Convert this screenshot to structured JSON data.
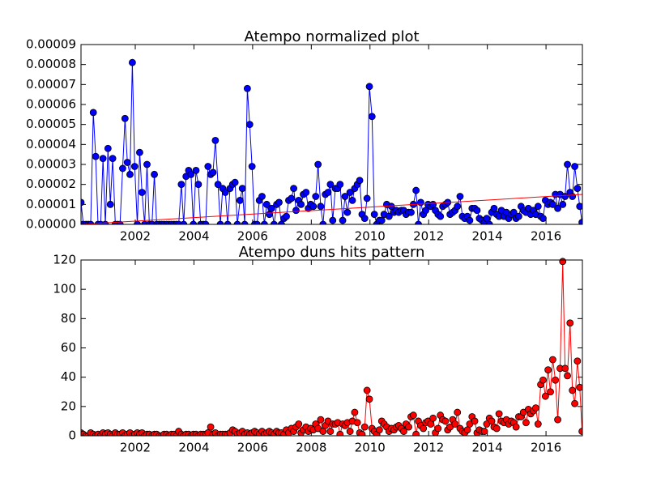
{
  "chart_data": [
    {
      "type": "line",
      "title": "Atempo normalized plot",
      "x": [
        2000.15,
        2000.23,
        2000.32,
        2000.4,
        2000.48,
        2000.57,
        2000.65,
        2000.73,
        2000.82,
        2000.9,
        2000.98,
        2001.07,
        2001.15,
        2001.23,
        2001.32,
        2001.4,
        2001.48,
        2001.57,
        2001.65,
        2001.73,
        2001.82,
        2001.9,
        2001.98,
        2002.07,
        2002.15,
        2002.23,
        2002.32,
        2002.4,
        2002.48,
        2002.57,
        2002.65,
        2002.73,
        2002.82,
        2002.9,
        2002.98,
        2003.07,
        2003.15,
        2003.23,
        2003.32,
        2003.4,
        2003.48,
        2003.57,
        2003.65,
        2003.73,
        2003.82,
        2003.9,
        2003.98,
        2004.07,
        2004.15,
        2004.23,
        2004.32,
        2004.4,
        2004.48,
        2004.57,
        2004.65,
        2004.73,
        2004.82,
        2004.9,
        2004.98,
        2005.07,
        2005.15,
        2005.23,
        2005.32,
        2005.4,
        2005.48,
        2005.57,
        2005.65,
        2005.73,
        2005.82,
        2005.9,
        2005.98,
        2006.07,
        2006.15,
        2006.23,
        2006.32,
        2006.4,
        2006.48,
        2006.57,
        2006.65,
        2006.73,
        2006.82,
        2006.9,
        2006.98,
        2007.07,
        2007.15,
        2007.23,
        2007.32,
        2007.4,
        2007.48,
        2007.57,
        2007.65,
        2007.73,
        2007.82,
        2007.9,
        2007.98,
        2008.07,
        2008.15,
        2008.23,
        2008.32,
        2008.4,
        2008.48,
        2008.57,
        2008.65,
        2008.73,
        2008.82,
        2008.9,
        2008.98,
        2009.07,
        2009.15,
        2009.23,
        2009.32,
        2009.4,
        2009.48,
        2009.57,
        2009.65,
        2009.73,
        2009.82,
        2009.9,
        2009.98,
        2010.07,
        2010.15,
        2010.23,
        2010.32,
        2010.4,
        2010.48,
        2010.57,
        2010.65,
        2010.73,
        2010.82,
        2010.9,
        2010.98,
        2011.07,
        2011.15,
        2011.23,
        2011.32,
        2011.4,
        2011.48,
        2011.57,
        2011.65,
        2011.73,
        2011.82,
        2011.9,
        2011.98,
        2012.07,
        2012.15,
        2012.23,
        2012.32,
        2012.4,
        2012.48,
        2012.57,
        2012.65,
        2012.73,
        2012.82,
        2012.9,
        2012.98,
        2013.07,
        2013.15,
        2013.23,
        2013.32,
        2013.4,
        2013.48,
        2013.57,
        2013.65,
        2013.73,
        2013.82,
        2013.9,
        2013.98,
        2014.07,
        2014.15,
        2014.23,
        2014.32,
        2014.4,
        2014.48,
        2014.57,
        2014.65,
        2014.73,
        2014.82,
        2014.9,
        2014.98,
        2015.07,
        2015.15,
        2015.23,
        2015.32,
        2015.4,
        2015.48,
        2015.57,
        2015.65,
        2015.73,
        2015.82,
        2015.9,
        2015.98,
        2016.07,
        2016.15,
        2016.23,
        2016.32,
        2016.4,
        2016.48,
        2016.57,
        2016.65,
        2016.73,
        2016.82,
        2016.9,
        2016.98,
        2017.07,
        2017.15,
        2017.23
      ],
      "series": [
        {
          "color": "#0000ff",
          "marker": "circle",
          "values": [
            1.1e-05,
            0,
            0,
            0,
            0,
            5.6e-05,
            3.4e-05,
            0,
            0,
            3.3e-05,
            0,
            3.8e-05,
            1e-05,
            3.3e-05,
            0,
            0,
            0,
            2.8e-05,
            5.3e-05,
            3.1e-05,
            2.5e-05,
            8.1e-05,
            2.9e-05,
            0,
            3.6e-05,
            1.6e-05,
            0,
            3e-05,
            0,
            0,
            2.5e-05,
            0,
            0,
            0,
            0,
            0,
            0,
            0,
            0,
            0,
            0,
            2e-05,
            0,
            2.4e-05,
            2.7e-05,
            2.5e-05,
            0,
            2.7e-05,
            2e-05,
            0,
            0,
            0,
            2.9e-05,
            2.5e-05,
            2.6e-05,
            4.2e-05,
            2e-05,
            0,
            1.8e-05,
            1.6e-05,
            0,
            1.8e-05,
            2e-05,
            2.1e-05,
            0,
            1.2e-05,
            1.8e-05,
            0,
            6.8e-05,
            5e-05,
            2.9e-05,
            0,
            0,
            1.2e-05,
            1.4e-05,
            0,
            1e-05,
            5e-06,
            8e-06,
            0,
            1e-05,
            1.1e-05,
            0,
            3e-06,
            4e-06,
            1.2e-05,
            1.3e-05,
            1.8e-05,
            7e-06,
            1.2e-05,
            1e-05,
            1.5e-05,
            1.6e-05,
            8e-06,
            1e-05,
            9e-06,
            1.4e-05,
            3e-05,
            9e-06,
            0,
            1.5e-05,
            1.6e-05,
            2e-05,
            2e-06,
            1.8e-05,
            1.8e-05,
            2e-05,
            2e-06,
            1.4e-05,
            6e-06,
            1.6e-05,
            1.2e-05,
            1.8e-05,
            2e-05,
            2.2e-05,
            5e-06,
            3e-06,
            1.3e-05,
            6.9e-05,
            5.4e-05,
            5e-06,
            0,
            2e-06,
            2e-06,
            5e-06,
            1e-05,
            4e-06,
            9e-06,
            6e-06,
            7e-06,
            6e-06,
            7e-06,
            7e-06,
            5e-06,
            6e-06,
            6e-06,
            1e-05,
            1.7e-05,
            0,
            1.1e-05,
            5e-06,
            7e-06,
            1e-05,
            9e-06,
            1e-05,
            7e-06,
            5e-06,
            4e-06,
            9e-06,
            1e-05,
            1.1e-05,
            5e-06,
            6e-06,
            7e-06,
            9e-06,
            1.4e-05,
            4e-06,
            3e-06,
            4e-06,
            2e-06,
            8e-06,
            8e-06,
            7e-06,
            3e-06,
            2e-06,
            1e-06,
            3e-06,
            0,
            6e-06,
            8e-06,
            5e-06,
            4e-06,
            7e-06,
            4e-06,
            6e-06,
            3e-06,
            5e-06,
            6e-06,
            3e-06,
            4e-06,
            9e-06,
            7e-06,
            6e-06,
            8e-06,
            5e-06,
            7e-06,
            5e-06,
            9e-06,
            4e-06,
            3e-06,
            1.2e-05,
            1e-05,
            1.1e-05,
            1e-05,
            1.5e-05,
            8e-06,
            1.5e-05,
            1e-05,
            1.4e-05,
            3e-05,
            1.6e-05,
            1.4e-05,
            2.9e-05,
            1.8e-05,
            9e-06,
            1e-06
          ]
        },
        {
          "color": "#ff0000",
          "x": [
            2000.15,
            2017.24
          ],
          "values": [
            0,
            1.5e-05
          ]
        }
      ],
      "xlim": [
        2000.15,
        2017.24
      ],
      "xticks": [
        2002,
        2004,
        2006,
        2008,
        2010,
        2012,
        2014,
        2016
      ],
      "ylim": [
        0,
        9e-05
      ],
      "yticks": [
        {
          "value": 0,
          "label": "0.00000"
        },
        {
          "value": 1e-05,
          "label": "0.00001"
        },
        {
          "value": 2e-05,
          "label": "0.00002"
        },
        {
          "value": 3e-05,
          "label": "0.00003"
        },
        {
          "value": 4e-05,
          "label": "0.00004"
        },
        {
          "value": 5e-05,
          "label": "0.00005"
        },
        {
          "value": 6e-05,
          "label": "0.00006"
        },
        {
          "value": 7e-05,
          "label": "0.00007"
        },
        {
          "value": 8e-05,
          "label": "0.00008"
        },
        {
          "value": 9e-05,
          "label": "0.00009"
        }
      ]
    },
    {
      "type": "line",
      "title": "Atempo duns hits pattern",
      "x": [
        2000.15,
        2000.23,
        2000.32,
        2000.4,
        2000.48,
        2000.57,
        2000.65,
        2000.73,
        2000.82,
        2000.9,
        2000.98,
        2001.07,
        2001.15,
        2001.23,
        2001.32,
        2001.4,
        2001.48,
        2001.57,
        2001.65,
        2001.73,
        2001.82,
        2001.9,
        2001.98,
        2002.07,
        2002.15,
        2002.23,
        2002.32,
        2002.4,
        2002.48,
        2002.57,
        2002.65,
        2002.73,
        2002.82,
        2002.9,
        2002.98,
        2003.07,
        2003.15,
        2003.23,
        2003.32,
        2003.4,
        2003.48,
        2003.57,
        2003.65,
        2003.73,
        2003.82,
        2003.9,
        2003.98,
        2004.07,
        2004.15,
        2004.23,
        2004.32,
        2004.4,
        2004.48,
        2004.57,
        2004.65,
        2004.73,
        2004.82,
        2004.9,
        2004.98,
        2005.07,
        2005.15,
        2005.23,
        2005.32,
        2005.4,
        2005.48,
        2005.57,
        2005.65,
        2005.73,
        2005.82,
        2005.9,
        2005.98,
        2006.07,
        2006.15,
        2006.23,
        2006.32,
        2006.4,
        2006.48,
        2006.57,
        2006.65,
        2006.73,
        2006.82,
        2006.9,
        2006.98,
        2007.07,
        2007.15,
        2007.23,
        2007.32,
        2007.4,
        2007.48,
        2007.57,
        2007.65,
        2007.73,
        2007.82,
        2007.9,
        2007.98,
        2008.07,
        2008.15,
        2008.23,
        2008.32,
        2008.4,
        2008.48,
        2008.57,
        2008.65,
        2008.73,
        2008.82,
        2008.9,
        2008.98,
        2009.07,
        2009.15,
        2009.23,
        2009.32,
        2009.4,
        2009.48,
        2009.57,
        2009.65,
        2009.73,
        2009.82,
        2009.9,
        2009.98,
        2010.07,
        2010.15,
        2010.23,
        2010.32,
        2010.4,
        2010.48,
        2010.57,
        2010.65,
        2010.73,
        2010.82,
        2010.9,
        2010.98,
        2011.07,
        2011.15,
        2011.23,
        2011.32,
        2011.4,
        2011.48,
        2011.57,
        2011.65,
        2011.73,
        2011.82,
        2011.9,
        2011.98,
        2012.07,
        2012.15,
        2012.23,
        2012.32,
        2012.4,
        2012.48,
        2012.57,
        2012.65,
        2012.73,
        2012.82,
        2012.9,
        2012.98,
        2013.07,
        2013.15,
        2013.23,
        2013.32,
        2013.4,
        2013.48,
        2013.57,
        2013.65,
        2013.73,
        2013.82,
        2013.9,
        2013.98,
        2014.07,
        2014.15,
        2014.23,
        2014.32,
        2014.4,
        2014.48,
        2014.57,
        2014.65,
        2014.73,
        2014.82,
        2014.9,
        2014.98,
        2015.07,
        2015.15,
        2015.23,
        2015.32,
        2015.4,
        2015.48,
        2015.57,
        2015.65,
        2015.73,
        2015.82,
        2015.9,
        2015.98,
        2016.07,
        2016.15,
        2016.23,
        2016.32,
        2016.4,
        2016.48,
        2016.57,
        2016.65,
        2016.73,
        2016.82,
        2016.9,
        2016.98,
        2017.07,
        2017.15,
        2017.23
      ],
      "series": [
        {
          "color": "#ff0000",
          "marker": "circle",
          "values": [
            2,
            1,
            0,
            0,
            2,
            1,
            0,
            1,
            0,
            2,
            1,
            2,
            1,
            0,
            2,
            1,
            1,
            2,
            0,
            1,
            2,
            0,
            1,
            2,
            1,
            2,
            0,
            1,
            1,
            0,
            1,
            1,
            0,
            0,
            1,
            1,
            0,
            1,
            1,
            0,
            3,
            1,
            0,
            1,
            1,
            0,
            1,
            1,
            0,
            1,
            1,
            1,
            2,
            6,
            1,
            2,
            0,
            1,
            1,
            1,
            1,
            2,
            4,
            3,
            1,
            2,
            3,
            1,
            2,
            1,
            2,
            3,
            2,
            1,
            3,
            1,
            2,
            3,
            2,
            1,
            3,
            2,
            2,
            1,
            4,
            2,
            5,
            3,
            6,
            8,
            2,
            4,
            6,
            3,
            5,
            4,
            8,
            5,
            11,
            3,
            7,
            10,
            3,
            8,
            8,
            9,
            1,
            8,
            7,
            9,
            3,
            10,
            16,
            9,
            2,
            1,
            6,
            31,
            25,
            5,
            3,
            1,
            4,
            10,
            8,
            6,
            3,
            5,
            4,
            6,
            7,
            5,
            3,
            8,
            6,
            13,
            14,
            1,
            10,
            7,
            5,
            9,
            10,
            8,
            12,
            2,
            5,
            14,
            11,
            10,
            4,
            6,
            11,
            8,
            16,
            5,
            3,
            2,
            4,
            8,
            13,
            10,
            2,
            4,
            3,
            3,
            8,
            12,
            10,
            6,
            5,
            15,
            10,
            9,
            11,
            8,
            10,
            9,
            6,
            13,
            13,
            16,
            9,
            18,
            15,
            17,
            19,
            8,
            35,
            38,
            27,
            45,
            30,
            52,
            38,
            11,
            46,
            119,
            46,
            41,
            77,
            31,
            22,
            51,
            33,
            3
          ]
        }
      ],
      "xlim": [
        2000.15,
        2017.24
      ],
      "xticks": [
        2002,
        2004,
        2006,
        2008,
        2010,
        2012,
        2014,
        2016
      ],
      "ylim": [
        0,
        120
      ],
      "yticks": [
        0,
        20,
        40,
        60,
        80,
        100,
        120
      ]
    }
  ]
}
